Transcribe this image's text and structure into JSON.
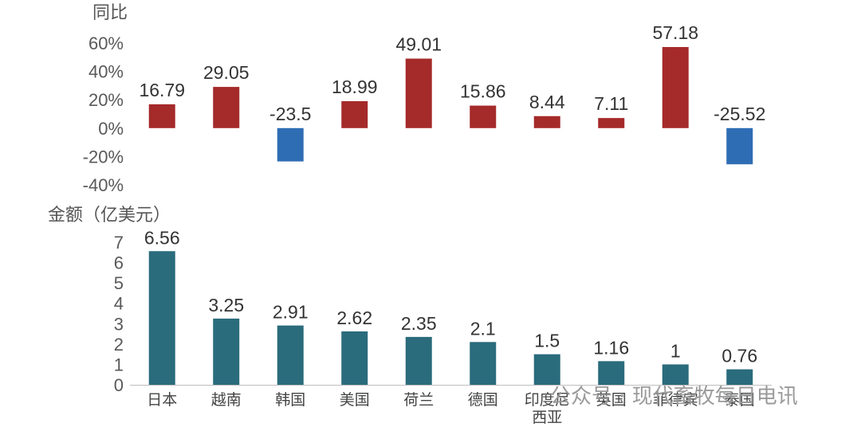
{
  "chart_data": [
    {
      "type": "bar",
      "ylabel": "同比",
      "categories": [
        "日本",
        "越南",
        "韩国",
        "美国",
        "荷兰",
        "德国",
        "印度尼西亚",
        "英国",
        "菲律宾",
        "泰国"
      ],
      "values": [
        16.79,
        29.05,
        -23.5,
        18.99,
        49.01,
        15.86,
        8.44,
        7.11,
        57.18,
        -25.52
      ],
      "value_labels": [
        "16.79",
        "29.05",
        "-23.5",
        "18.99",
        "49.01",
        "15.86",
        "8.44",
        "7.11",
        "57.18",
        "-25.52"
      ],
      "ylim": [
        -40,
        60
      ],
      "yticks": [
        "60%",
        "40%",
        "20%",
        "0%",
        "-20%",
        "-40%"
      ],
      "colors": {
        "positive": "#a52a2a",
        "negative": "#2e6db4"
      },
      "grid": false
    },
    {
      "type": "bar",
      "ylabel": "金额（亿美元）",
      "categories": [
        "日本",
        "越南",
        "韩国",
        "美国",
        "荷兰",
        "德国",
        "印度尼西亚",
        "英国",
        "菲律宾",
        "泰国"
      ],
      "category_lines": [
        [
          "日本"
        ],
        [
          "越南"
        ],
        [
          "韩国"
        ],
        [
          "美国"
        ],
        [
          "荷兰"
        ],
        [
          "德国"
        ],
        [
          "印度尼",
          "西亚"
        ],
        [
          "英国"
        ],
        [
          "菲律宾"
        ],
        [
          "泰国"
        ]
      ],
      "values": [
        6.56,
        3.25,
        2.91,
        2.62,
        2.35,
        2.1,
        1.5,
        1.16,
        1,
        0.76
      ],
      "value_labels": [
        "6.56",
        "3.25",
        "2.91",
        "2.62",
        "2.35",
        "2.1",
        "1.5",
        "1.16",
        "1",
        "0.76"
      ],
      "ylim": [
        0,
        7
      ],
      "yticks": [
        "7",
        "6",
        "5",
        "4",
        "3",
        "2",
        "1",
        "0"
      ],
      "colors": {
        "bar": "#2a6b7c"
      },
      "grid": false
    }
  ],
  "watermark": "公众号 · 现代畜牧每日电讯"
}
